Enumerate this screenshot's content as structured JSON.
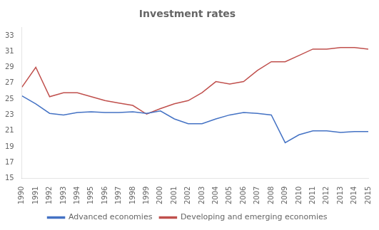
{
  "chart_data": {
    "type": "line",
    "title": "Investment rates",
    "x": [
      1990,
      1991,
      1992,
      1993,
      1994,
      1995,
      1996,
      1997,
      1998,
      1999,
      2000,
      2001,
      2002,
      2003,
      2004,
      2005,
      2006,
      2007,
      2008,
      2009,
      2010,
      2011,
      2012,
      2013,
      2014,
      2015
    ],
    "series": [
      {
        "name": "Advanced economies",
        "color": "#4472C4",
        "values": [
          25.4,
          24.4,
          23.2,
          23.0,
          23.3,
          23.4,
          23.3,
          23.3,
          23.4,
          23.2,
          23.5,
          22.5,
          21.9,
          21.9,
          22.5,
          23.0,
          23.3,
          23.2,
          23.0,
          19.5,
          20.5,
          21.0,
          21.0,
          20.8,
          20.9,
          20.9
        ]
      },
      {
        "name": "Developing and emerging economies",
        "color": "#C0504D",
        "values": [
          26.5,
          29.0,
          25.3,
          25.8,
          25.8,
          25.3,
          24.8,
          24.5,
          24.2,
          23.1,
          23.8,
          24.4,
          24.8,
          25.8,
          27.2,
          26.9,
          27.2,
          28.6,
          29.7,
          29.7,
          30.5,
          31.3,
          31.3,
          31.5,
          31.5,
          31.3
        ]
      }
    ],
    "xlim": [
      1990,
      2015
    ],
    "xticks": [
      1990,
      1991,
      1992,
      1993,
      1994,
      1995,
      1996,
      1997,
      1998,
      1999,
      2000,
      2001,
      2002,
      2003,
      2004,
      2005,
      2006,
      2007,
      2008,
      2009,
      2010,
      2011,
      2012,
      2013,
      2014,
      2015
    ],
    "ylim": [
      15,
      34
    ],
    "yticks": [
      15,
      17,
      19,
      21,
      23,
      25,
      27,
      29,
      31,
      33
    ],
    "grid": false,
    "legend": "bottom",
    "marker": "none"
  }
}
